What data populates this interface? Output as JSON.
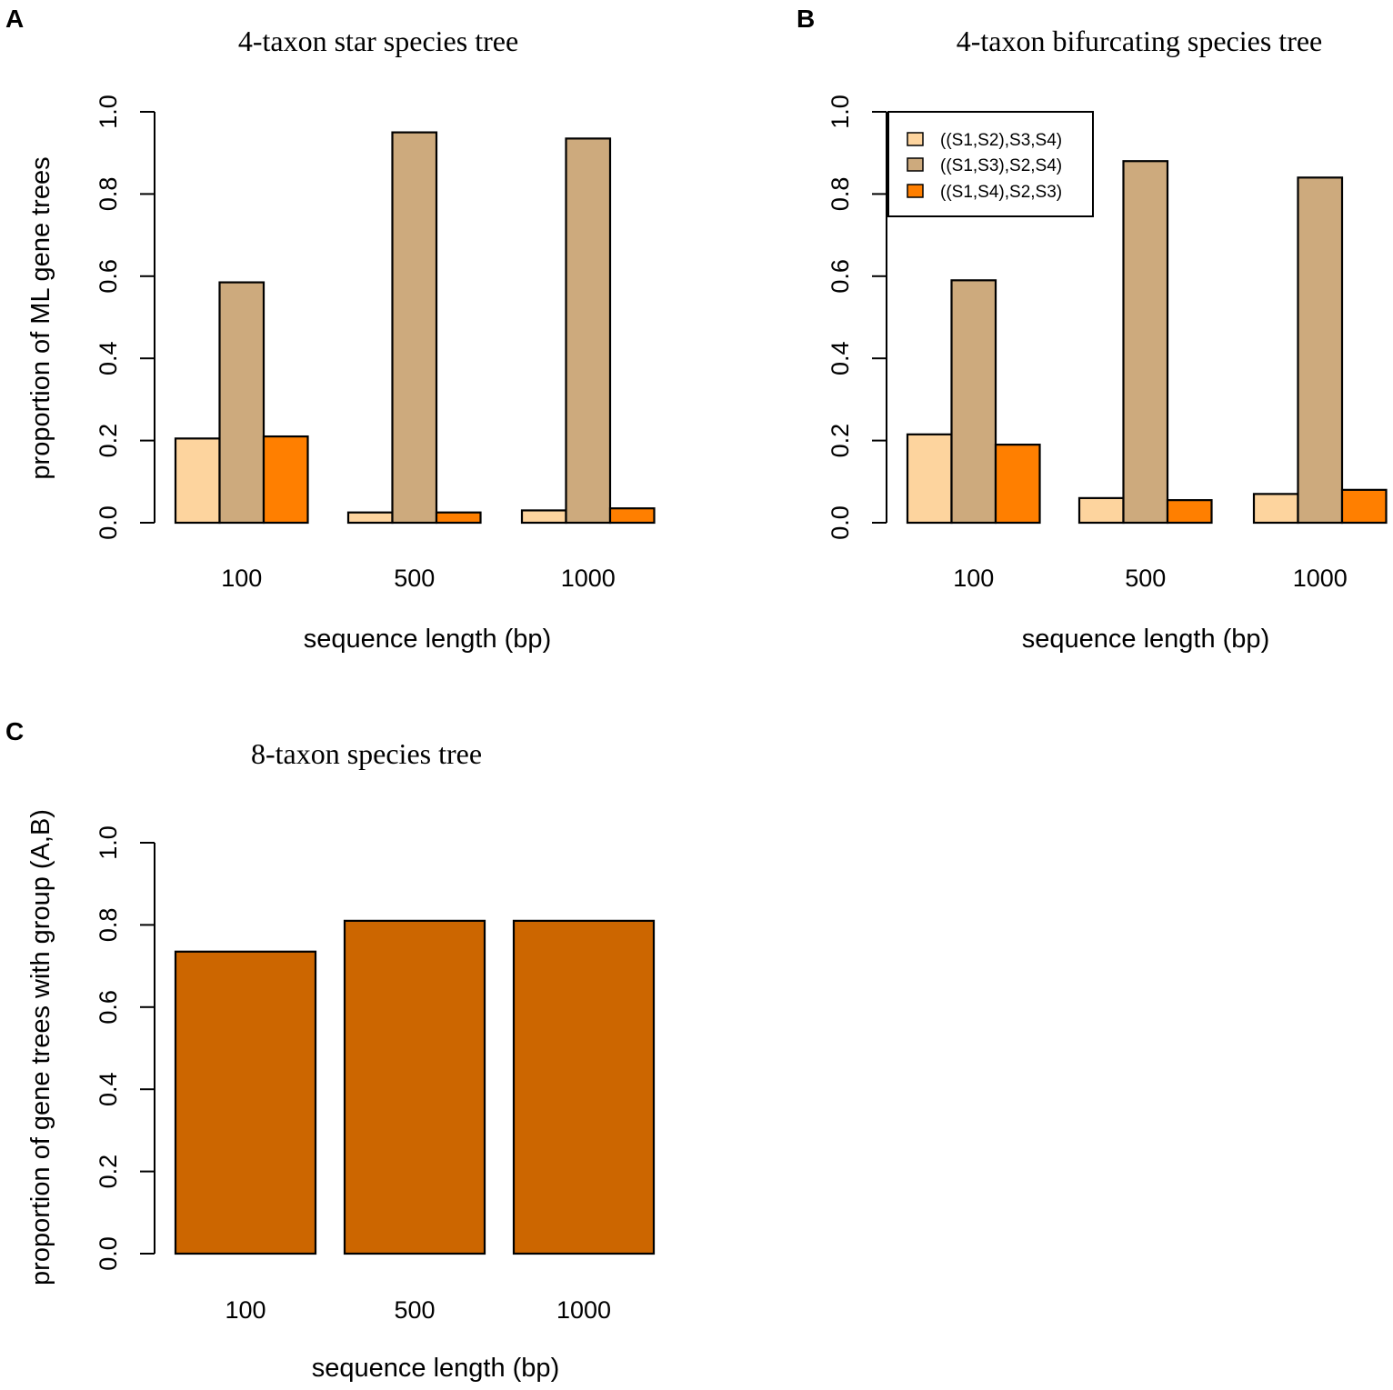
{
  "chart_data": [
    {
      "panel": "A",
      "type": "bar",
      "title": "4-taxon star species tree",
      "xlabel": "sequence length (bp)",
      "ylabel": "proportion of ML gene trees",
      "ylim": [
        0,
        1
      ],
      "yticks": [
        "0.0",
        "0.2",
        "0.4",
        "0.6",
        "0.8",
        "1.0"
      ],
      "categories": [
        "100",
        "500",
        "1000"
      ],
      "series": [
        {
          "name": "((S1,S2),S3,S4)",
          "color": "#FDD49E",
          "values": [
            0.205,
            0.025,
            0.03
          ]
        },
        {
          "name": "((S1,S3),S2,S4)",
          "color": "#CDAA7D",
          "values": [
            0.585,
            0.95,
            0.935
          ]
        },
        {
          "name": "((S1,S4),S2,S3)",
          "color": "#FF7F00",
          "values": [
            0.21,
            0.025,
            0.035
          ]
        }
      ],
      "legend": null
    },
    {
      "panel": "B",
      "type": "bar",
      "title": "4-taxon bifurcating species tree",
      "xlabel": "sequence length (bp)",
      "ylabel": "",
      "ylim": [
        0,
        1
      ],
      "yticks": [
        "0.0",
        "0.2",
        "0.4",
        "0.6",
        "0.8",
        "1.0"
      ],
      "categories": [
        "100",
        "500",
        "1000"
      ],
      "series": [
        {
          "name": "((S1,S2),S3,S4)",
          "color": "#FDD49E",
          "values": [
            0.215,
            0.06,
            0.07
          ]
        },
        {
          "name": "((S1,S3),S2,S4)",
          "color": "#CDAA7D",
          "values": [
            0.59,
            0.88,
            0.84
          ]
        },
        {
          "name": "((S1,S4),S2,S3)",
          "color": "#FF7F00",
          "values": [
            0.19,
            0.055,
            0.08
          ]
        }
      ],
      "legend": "top-left"
    },
    {
      "panel": "C",
      "type": "bar",
      "title": "8-taxon species tree",
      "xlabel": "sequence length (bp)",
      "ylabel": "proportion of gene trees with group (A,B)",
      "ylim": [
        0,
        1
      ],
      "yticks": [
        "0.0",
        "0.2",
        "0.4",
        "0.6",
        "0.8",
        "1.0"
      ],
      "categories": [
        "100",
        "500",
        "1000"
      ],
      "series": [
        {
          "name": "(A,B)",
          "color": "#CC6600",
          "values": [
            0.735,
            0.81,
            0.81
          ]
        }
      ],
      "legend": null
    }
  ]
}
